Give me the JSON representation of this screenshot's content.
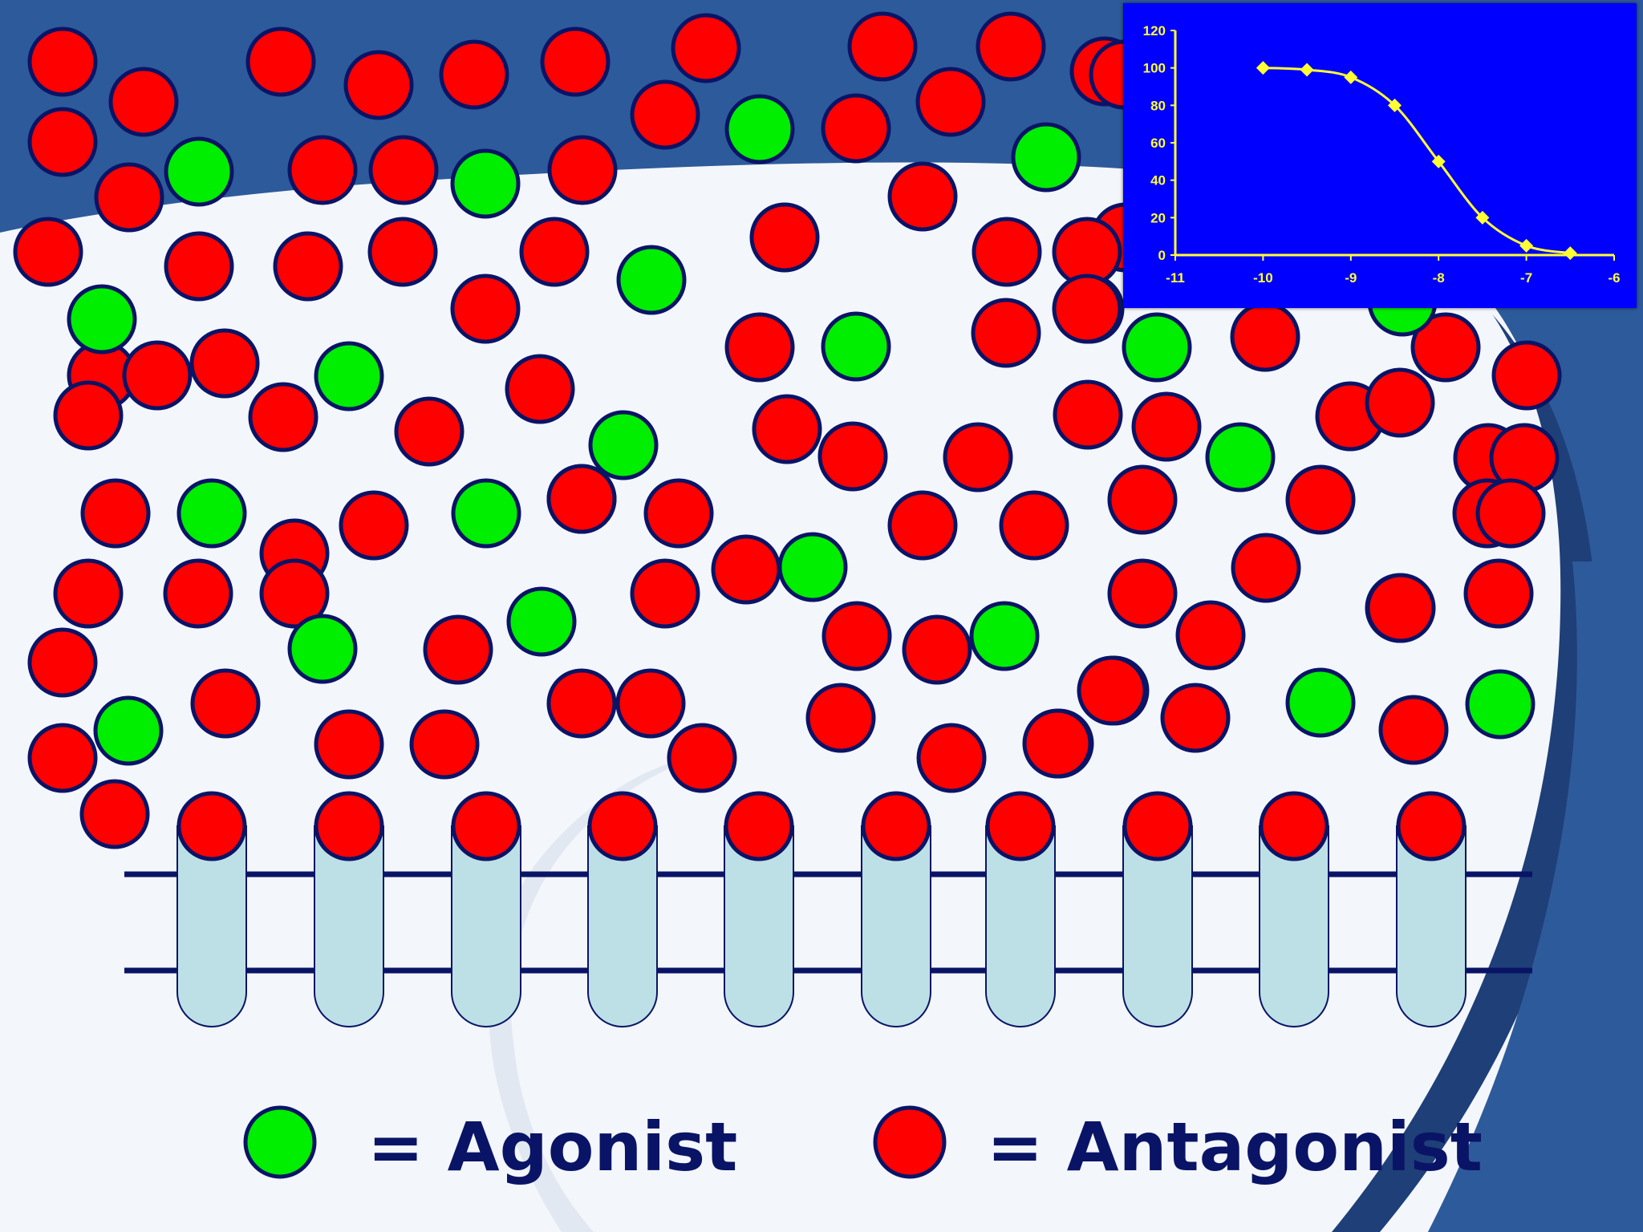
{
  "legend": {
    "agonist_label": "= Agonist",
    "antagonist_label": "= Antagonist"
  },
  "colors": {
    "agonist": "#00ee00",
    "antagonist": "#ff0000",
    "outline": "#0a1466",
    "receptor": "#bde0e6",
    "chart_background": "#0000ff",
    "chart_line": "#ffff33"
  },
  "chart_data": {
    "type": "line",
    "title": "",
    "xlabel": "",
    "ylabel": "",
    "xlim": [
      -11,
      -6
    ],
    "ylim": [
      0,
      120
    ],
    "x_ticks": [
      "-11",
      "-10",
      "-9",
      "-8",
      "-7",
      "-6"
    ],
    "y_ticks": [
      "0",
      "20",
      "40",
      "60",
      "80",
      "100",
      "120"
    ],
    "series": [
      {
        "x": [
          -10,
          -9.5,
          -9,
          -8.5,
          -8,
          -7.5,
          -7,
          -6.5
        ],
        "values": [
          100,
          99,
          95,
          80,
          50,
          20,
          5,
          1
        ]
      }
    ],
    "grid": false,
    "legend": "none"
  },
  "receptors": {
    "count": 10
  }
}
